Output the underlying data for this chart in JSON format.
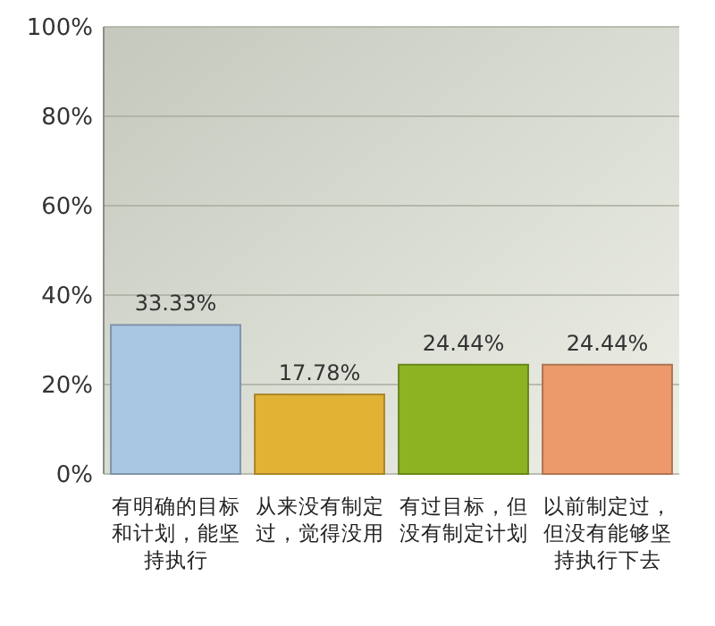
{
  "chart_data": {
    "type": "bar",
    "categories": [
      "有明确的目标和计划，能坚持执行",
      "从来没有制定过，觉得没用",
      "有过目标，但没有制定计划",
      "以前制定过，但没有能够坚持执行下去"
    ],
    "values": [
      33.33,
      17.78,
      24.44,
      24.44
    ],
    "colors": [
      "#a9c6e3",
      "#e2b235",
      "#8cb422",
      "#ec9a6c"
    ],
    "value_labels": [
      "33.33%",
      "17.78%",
      "24.44%",
      "24.44%"
    ],
    "ylim": [
      0,
      100
    ],
    "yticks": [
      {
        "value": 0,
        "label": "0%"
      },
      {
        "value": 20,
        "label": "20%"
      },
      {
        "value": 40,
        "label": "40%"
      },
      {
        "value": 60,
        "label": "60%"
      },
      {
        "value": 80,
        "label": "80%"
      },
      {
        "value": 100,
        "label": "100%"
      }
    ],
    "grid": "y"
  }
}
